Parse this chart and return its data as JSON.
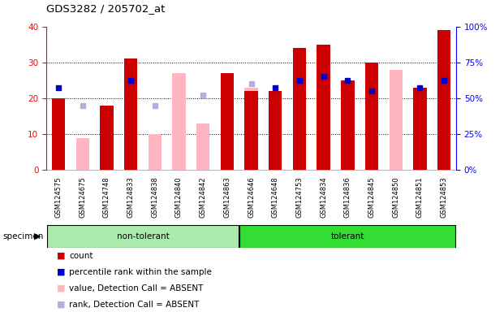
{
  "title": "GDS3282 / 205702_at",
  "samples": [
    "GSM124575",
    "GSM124675",
    "GSM124748",
    "GSM124833",
    "GSM124838",
    "GSM124840",
    "GSM124842",
    "GSM124863",
    "GSM124646",
    "GSM124648",
    "GSM124753",
    "GSM124834",
    "GSM124836",
    "GSM124845",
    "GSM124850",
    "GSM124851",
    "GSM124853"
  ],
  "groups": [
    "non-tolerant",
    "non-tolerant",
    "non-tolerant",
    "non-tolerant",
    "non-tolerant",
    "non-tolerant",
    "non-tolerant",
    "non-tolerant",
    "tolerant",
    "tolerant",
    "tolerant",
    "tolerant",
    "tolerant",
    "tolerant",
    "tolerant",
    "tolerant",
    "tolerant"
  ],
  "count": [
    20,
    0,
    18,
    31,
    0,
    0,
    0,
    27,
    22,
    22,
    34,
    35,
    25,
    30,
    0,
    23,
    39
  ],
  "rank_present": [
    23,
    0,
    0,
    25,
    0,
    0,
    0,
    0,
    0,
    23,
    25,
    26,
    25,
    22,
    0,
    23,
    25
  ],
  "absent_value": [
    0,
    9,
    0,
    0,
    10,
    27,
    13,
    27,
    23,
    0,
    0,
    0,
    0,
    28,
    28,
    0,
    0
  ],
  "absent_rank": [
    0,
    18,
    0,
    0,
    18,
    0,
    21,
    0,
    24,
    0,
    0,
    0,
    0,
    0,
    0,
    0,
    0
  ],
  "ylim": [
    0,
    40
  ],
  "y2lim": [
    0,
    100
  ],
  "yticks": [
    0,
    10,
    20,
    30,
    40
  ],
  "y2ticks": [
    0,
    25,
    50,
    75,
    100
  ],
  "y2ticklabels": [
    "0%",
    "25%",
    "50%",
    "75%",
    "100%"
  ],
  "color_red": "#cc0000",
  "color_blue": "#0000cc",
  "color_pink": "#ffb6c1",
  "color_lightblue": "#b0b0dd",
  "color_bg_ticks": "#c8c8c8",
  "color_nontolerant": "#aaeaaa",
  "color_tolerant": "#33dd33",
  "legend_labels": [
    "count",
    "percentile rank within the sample",
    "value, Detection Call = ABSENT",
    "rank, Detection Call = ABSENT"
  ],
  "legend_colors": [
    "#cc0000",
    "#0000cc",
    "#ffb6c1",
    "#b0b0dd"
  ],
  "bar_width": 0.55
}
